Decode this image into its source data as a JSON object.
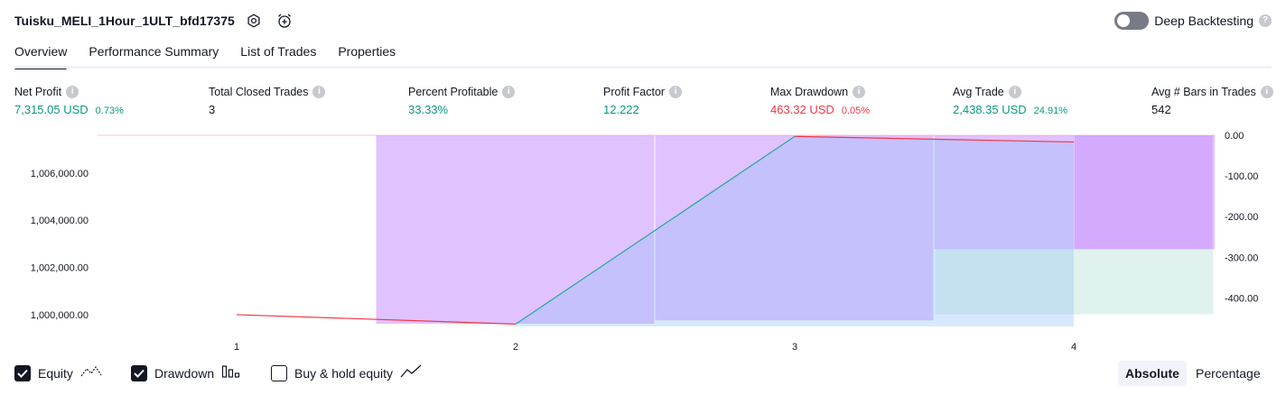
{
  "header": {
    "strategy_name": "Tuisku_MELI_1Hour_1ULT_bfd17375",
    "settings_icon": "gear-icon",
    "alert_icon": "alarm-plus-icon",
    "deep_backtesting_label": "Deep Backtesting",
    "deep_backtesting_on": false
  },
  "tabs": [
    {
      "label": "Overview",
      "active": true
    },
    {
      "label": "Performance Summary",
      "active": false
    },
    {
      "label": "List of Trades",
      "active": false
    },
    {
      "label": "Properties",
      "active": false
    }
  ],
  "metrics": [
    {
      "label": "Net Profit",
      "value": "7,315.05 USD",
      "pct": "0.73%",
      "color": "#089981"
    },
    {
      "label": "Total Closed Trades",
      "value": "3",
      "pct": "",
      "color": "#131722"
    },
    {
      "label": "Percent Profitable",
      "value": "33.33%",
      "pct": "",
      "color": "#089981"
    },
    {
      "label": "Profit Factor",
      "value": "12.222",
      "pct": "",
      "color": "#089981"
    },
    {
      "label": "Max Drawdown",
      "value": "463.32 USD",
      "pct": "0.05%",
      "color": "#f23645"
    },
    {
      "label": "Avg Trade",
      "value": "2,438.35 USD",
      "pct": "24.91%",
      "color": "#089981"
    },
    {
      "label": "Avg # Bars in Trades",
      "value": "542",
      "pct": "",
      "color": "#131722"
    }
  ],
  "chart_data": {
    "type": "line",
    "x": [
      1,
      2,
      3,
      4
    ],
    "xticks": [
      "1",
      "2",
      "3",
      "4"
    ],
    "equity": {
      "name": "Equity",
      "points": [
        [
          1,
          1000000
        ],
        [
          2,
          999600
        ],
        [
          3,
          1007550
        ],
        [
          4,
          1007315
        ]
      ]
    },
    "drawdown": {
      "name": "Drawdown",
      "bars": [
        {
          "x": 1,
          "value": 0
        },
        {
          "x": 2,
          "value": -463.32
        },
        {
          "x": 3,
          "value": -455
        },
        {
          "x": 4,
          "value": -280
        }
      ]
    },
    "run_up_bar": {
      "x": 4,
      "from": -280,
      "to": -440
    },
    "left_axis": {
      "ticks": [
        1000000,
        1002000,
        1004000,
        1006000
      ],
      "labels": [
        "1,000,000.00",
        "1,002,000.00",
        "1,004,000.00",
        "1,006,000.00"
      ],
      "min": 999500,
      "max": 1007600
    },
    "right_axis": {
      "ticks": [
        0,
        -100,
        -200,
        -300,
        -400
      ],
      "labels": [
        "0.00",
        "-100.00",
        "-200.00",
        "-300.00",
        "-400.00"
      ],
      "min": -470,
      "max": 0
    },
    "colors": {
      "equity_up": "#22ab94",
      "equity_down": "#f23645",
      "equity_fill": "rgba(144,191,249,0.35)",
      "drawdown_fill": "rgba(204,153,255,0.6)",
      "runup_fill": "rgba(178,223,210,0.4)"
    }
  },
  "footer": {
    "legend": [
      {
        "label": "Equity",
        "checked": true,
        "icon": "equity-line-icon"
      },
      {
        "label": "Drawdown",
        "checked": true,
        "icon": "drawdown-bars-icon"
      },
      {
        "label": "Buy & hold equity",
        "checked": false,
        "icon": "buyhold-line-icon"
      }
    ],
    "scale_absolute": "Absolute",
    "scale_percentage": "Percentage"
  }
}
